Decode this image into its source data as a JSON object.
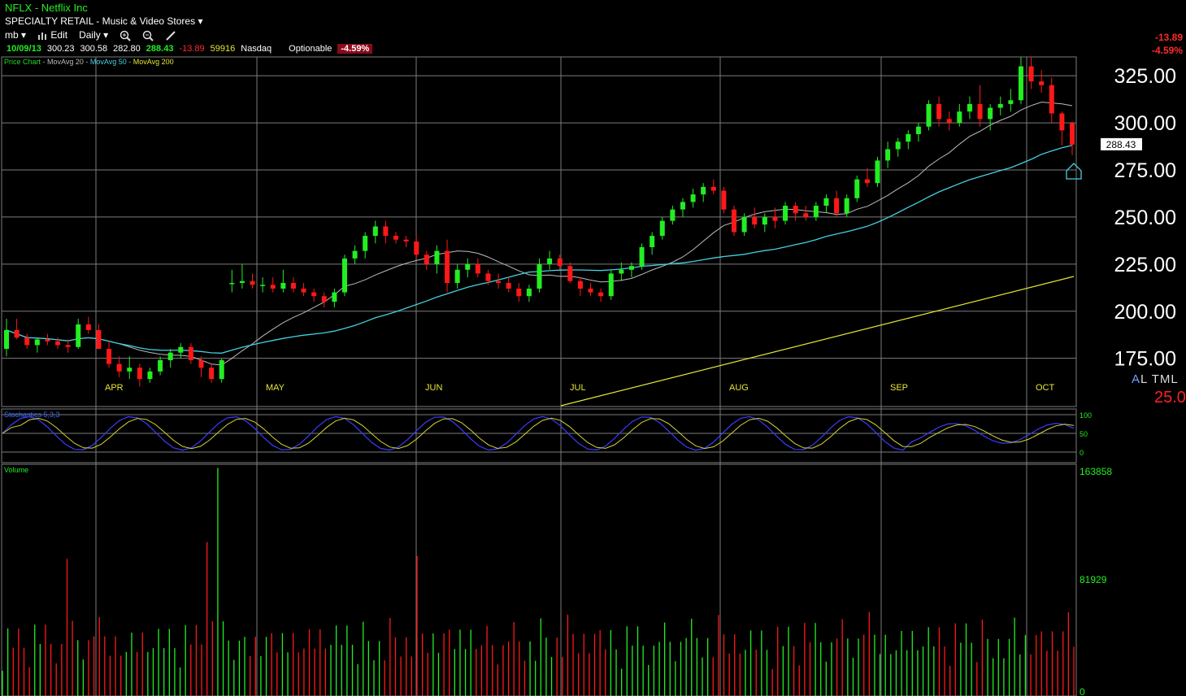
{
  "header": {
    "title": "NFLX - Netflix Inc",
    "sector": "SPECIALTY RETAIL - Music & Video Stores",
    "sector_arrow": "▾"
  },
  "toolbar": {
    "account": "mb",
    "edit_label": "Edit",
    "period": "Daily",
    "dropdown_arrow": "▾"
  },
  "quote": {
    "date": "10/09/13",
    "open": "300.23",
    "high": "300.58",
    "low": "282.80",
    "close": "288.43",
    "change": "-13.89",
    "volume": "59916",
    "exchange": "Nasdaq",
    "optionable": "Optionable",
    "pct_change": "-4.59%"
  },
  "right_change": {
    "change": "-13.89",
    "pct": "-4.59%"
  },
  "indicator_legend": {
    "price_chart": "Price Chart",
    "sep": " - ",
    "ma20": "MovAvg 20",
    "ma50": "MovAvg 50",
    "ma200": "MovAvg 200",
    "colors": {
      "price_chart": "#22dd22",
      "ma20": "#bbbbbb",
      "ma50": "#44d0e0",
      "ma200": "#e6e633"
    }
  },
  "price_axis": {
    "labels": [
      "325.00",
      "300.00",
      "275.00",
      "250.00",
      "225.00",
      "200.00",
      "175.00"
    ],
    "last_price_label": "288.43"
  },
  "panel_labels": {
    "stochastics": "Stochastics 5,3,3",
    "stoch_ticks": [
      "100",
      "50",
      "0"
    ],
    "volume": "Volume",
    "volume_ticks": [
      "163858",
      "81929",
      "0"
    ]
  },
  "extras": {
    "al_a": "A",
    "al_rest": "L TML",
    "bottom_right": "25.0"
  },
  "colors": {
    "up": "#22ee22",
    "down": "#ff1818",
    "grid": "#7c7c7c",
    "month": "#e6e633"
  },
  "chart_data": {
    "type": "candlestick",
    "title": "NFLX - Netflix Inc",
    "period": "Daily",
    "ylim": [
      155,
      335
    ],
    "x_month_labels": [
      "APR",
      "MAY",
      "JUN",
      "JUL",
      "AUG",
      "SEP",
      "OCT"
    ],
    "ohlc_approx": [
      [
        180,
        196,
        176,
        190
      ],
      [
        190,
        196,
        185,
        186
      ],
      [
        186,
        188,
        180,
        182
      ],
      [
        182,
        186,
        178,
        185
      ],
      [
        185,
        188,
        182,
        184
      ],
      [
        184,
        186,
        180,
        182
      ],
      [
        182,
        185,
        178,
        181
      ],
      [
        181,
        196,
        180,
        193
      ],
      [
        193,
        197,
        188,
        190
      ],
      [
        190,
        193,
        182,
        180
      ],
      [
        180,
        184,
        170,
        172
      ],
      [
        172,
        176,
        165,
        168
      ],
      [
        168,
        176,
        164,
        170
      ],
      [
        170,
        172,
        160,
        164
      ],
      [
        164,
        170,
        162,
        168
      ],
      [
        168,
        176,
        166,
        174
      ],
      [
        174,
        180,
        170,
        178
      ],
      [
        178,
        183,
        175,
        181
      ],
      [
        181,
        183,
        172,
        174
      ],
      [
        174,
        176,
        165,
        170
      ],
      [
        170,
        172,
        162,
        164
      ],
      [
        164,
        175,
        162,
        174
      ],
      [
        215,
        222,
        210,
        215
      ],
      [
        215,
        225,
        212,
        216
      ],
      [
        216,
        220,
        212,
        214
      ],
      [
        214,
        218,
        210,
        214
      ],
      [
        214,
        218,
        210,
        212
      ],
      [
        212,
        222,
        210,
        215
      ],
      [
        215,
        218,
        210,
        212
      ],
      [
        212,
        215,
        208,
        210
      ],
      [
        210,
        212,
        205,
        208
      ],
      [
        208,
        210,
        202,
        205
      ],
      [
        205,
        212,
        202,
        210
      ],
      [
        210,
        230,
        208,
        228
      ],
      [
        228,
        235,
        225,
        232
      ],
      [
        232,
        242,
        228,
        240
      ],
      [
        240,
        248,
        236,
        245
      ],
      [
        245,
        248,
        236,
        240
      ],
      [
        240,
        242,
        236,
        238
      ],
      [
        238,
        240,
        234,
        237
      ],
      [
        237,
        240,
        228,
        230
      ],
      [
        230,
        232,
        222,
        225
      ],
      [
        225,
        235,
        220,
        232
      ],
      [
        232,
        238,
        210,
        215
      ],
      [
        215,
        225,
        212,
        222
      ],
      [
        222,
        228,
        218,
        225
      ],
      [
        225,
        228,
        218,
        220
      ],
      [
        220,
        222,
        214,
        216
      ],
      [
        216,
        220,
        212,
        215
      ],
      [
        215,
        218,
        210,
        212
      ],
      [
        212,
        215,
        205,
        208
      ],
      [
        208,
        214,
        205,
        212
      ],
      [
        212,
        228,
        210,
        225
      ],
      [
        225,
        232,
        222,
        228
      ],
      [
        228,
        230,
        222,
        224
      ],
      [
        224,
        226,
        215,
        216
      ],
      [
        216,
        218,
        208,
        212
      ],
      [
        212,
        215,
        208,
        210
      ],
      [
        210,
        212,
        205,
        208
      ],
      [
        208,
        222,
        206,
        220
      ],
      [
        220,
        226,
        216,
        222
      ],
      [
        222,
        226,
        218,
        224
      ],
      [
        224,
        236,
        222,
        234
      ],
      [
        234,
        242,
        230,
        240
      ],
      [
        240,
        250,
        238,
        248
      ],
      [
        248,
        256,
        246,
        254
      ],
      [
        254,
        260,
        250,
        258
      ],
      [
        258,
        265,
        255,
        262
      ],
      [
        262,
        268,
        258,
        266
      ],
      [
        266,
        270,
        262,
        264
      ],
      [
        264,
        266,
        252,
        254
      ],
      [
        254,
        256,
        240,
        242
      ],
      [
        242,
        252,
        240,
        250
      ],
      [
        250,
        255,
        244,
        246
      ],
      [
        246,
        252,
        242,
        250
      ],
      [
        250,
        255,
        244,
        248
      ],
      [
        248,
        258,
        246,
        256
      ],
      [
        256,
        258,
        248,
        252
      ],
      [
        252,
        256,
        248,
        250
      ],
      [
        250,
        258,
        248,
        256
      ],
      [
        256,
        262,
        252,
        260
      ],
      [
        260,
        264,
        250,
        252
      ],
      [
        252,
        262,
        250,
        260
      ],
      [
        260,
        272,
        258,
        270
      ],
      [
        270,
        276,
        266,
        268
      ],
      [
        268,
        282,
        266,
        280
      ],
      [
        280,
        290,
        276,
        286
      ],
      [
        286,
        292,
        282,
        290
      ],
      [
        290,
        296,
        286,
        294
      ],
      [
        294,
        300,
        290,
        298
      ],
      [
        298,
        312,
        296,
        310
      ],
      [
        310,
        314,
        298,
        302
      ],
      [
        302,
        306,
        296,
        300
      ],
      [
        300,
        310,
        298,
        306
      ],
      [
        306,
        314,
        302,
        310
      ],
      [
        310,
        320,
        298,
        302
      ],
      [
        302,
        310,
        296,
        308
      ],
      [
        308,
        314,
        304,
        310
      ],
      [
        310,
        318,
        306,
        312
      ],
      [
        312,
        335,
        310,
        330
      ],
      [
        330,
        335,
        318,
        322
      ],
      [
        322,
        328,
        316,
        320
      ],
      [
        320,
        324,
        300,
        305
      ],
      [
        305,
        306,
        288,
        296
      ],
      [
        300,
        300.58,
        282.8,
        288.43
      ]
    ],
    "moving_averages": [
      {
        "name": "MovAvg 20",
        "color": "#bbbbbb"
      },
      {
        "name": "MovAvg 50",
        "color": "#44d0e0"
      },
      {
        "name": "MovAvg 200",
        "color": "#e6e633"
      }
    ],
    "last_close": 288.43,
    "stochastics": {
      "name": "Stochastics 5,3,3",
      "ylim": [
        0,
        100
      ]
    },
    "volume": {
      "name": "Volume",
      "max_tick": 163858,
      "mid_tick": 81929
    }
  }
}
